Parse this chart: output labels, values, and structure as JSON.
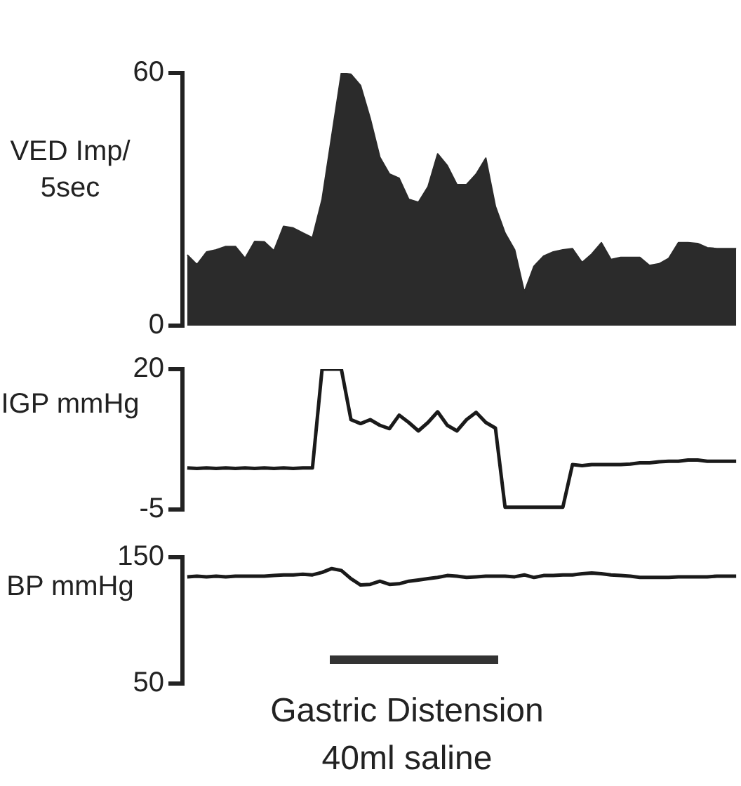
{
  "chart_data": [
    {
      "type": "area",
      "ylabel": "VED Imp/ 5sec",
      "tick_labels": "y",
      "categories": [
        null,
        null,
        null,
        null,
        null,
        null,
        null,
        null,
        null,
        null,
        null,
        null,
        null,
        null,
        null,
        null,
        null,
        null,
        null,
        null,
        null,
        null,
        null,
        null,
        null,
        null,
        null,
        null,
        null,
        null,
        null,
        null,
        null,
        null,
        null,
        null,
        null,
        null,
        null,
        null,
        null,
        null,
        null,
        null,
        null,
        null,
        null,
        null,
        null,
        null,
        null,
        null,
        null,
        null,
        null,
        null,
        null,
        null
      ],
      "ylim": [
        0,
        60
      ],
      "yticks": [
        0,
        60
      ],
      "series": [
        {
          "color": "#2b2b2b",
          "values": [
            16.8,
            14.5,
            17.5,
            18,
            18.8,
            18.8,
            16,
            20,
            19.9,
            17.8,
            23.6,
            23.2,
            22,
            20.9,
            30,
            45,
            60,
            59.7,
            57,
            49.2,
            40,
            36,
            35,
            30,
            29.3,
            33,
            40.8,
            38,
            33.5,
            33.5,
            36,
            39.8,
            28.3,
            22,
            18,
            8,
            14.1,
            16.5,
            17.5,
            18,
            18.3,
            15,
            17,
            19.7,
            15.7,
            16.2,
            16.2,
            16.2,
            14.3,
            14.7,
            16,
            19.7,
            19.7,
            19.5,
            18.5,
            18.3,
            18.3,
            18.3
          ]
        }
      ]
    },
    {
      "type": "line",
      "ylabel": "IGP mmHg",
      "tick_labels": "y",
      "categories": [
        null,
        null,
        null,
        null,
        null,
        null,
        null,
        null,
        null,
        null,
        null,
        null,
        null,
        null,
        null,
        null,
        null,
        null,
        null,
        null,
        null,
        null,
        null,
        null,
        null,
        null,
        null,
        null,
        null,
        null,
        null,
        null,
        null,
        null,
        null,
        null,
        null,
        null,
        null,
        null,
        null,
        null,
        null,
        null,
        null,
        null,
        null,
        null,
        null,
        null,
        null,
        null,
        null,
        null,
        null,
        null,
        null,
        null
      ],
      "ylim": [
        -5,
        20
      ],
      "yticks": [
        -5,
        20
      ],
      "series": [
        {
          "color": "#1a1a1a",
          "values": [
            2.4,
            2.3,
            2.4,
            2.3,
            2.4,
            2.3,
            2.4,
            2.3,
            2.4,
            2.3,
            2.4,
            2.3,
            2.4,
            2.4,
            20,
            20,
            20,
            11,
            10.3,
            11,
            10,
            9.4,
            11.8,
            10.5,
            9,
            10.5,
            12.4,
            10,
            9,
            11,
            12.3,
            10.5,
            9.5,
            -4.6,
            -4.6,
            -4.6,
            -4.6,
            -4.6,
            -4.6,
            -4.6,
            3,
            2.8,
            3,
            3,
            3,
            3,
            3.1,
            3.3,
            3.3,
            3.5,
            3.6,
            3.6,
            3.8,
            3.8,
            3.6,
            3.6,
            3.6,
            3.6
          ]
        }
      ]
    },
    {
      "type": "line",
      "ylabel": "BP mmHg",
      "tick_labels": "y",
      "categories": [
        null,
        null,
        null,
        null,
        null,
        null,
        null,
        null,
        null,
        null,
        null,
        null,
        null,
        null,
        null,
        null,
        null,
        null,
        null,
        null,
        null,
        null,
        null,
        null,
        null,
        null,
        null,
        null,
        null,
        null,
        null,
        null,
        null,
        null,
        null,
        null,
        null,
        null,
        null,
        null,
        null,
        null,
        null,
        null,
        null,
        null,
        null,
        null,
        null,
        null,
        null,
        null,
        null,
        null,
        null,
        null,
        null,
        null
      ],
      "ylim": [
        50,
        150
      ],
      "yticks": [
        50,
        150
      ],
      "annotations": [
        "Gastric Distension 40ml saline"
      ],
      "series": [
        {
          "color": "#1a1a1a",
          "values": [
            134.5,
            135,
            134.5,
            135,
            134.5,
            135,
            135,
            135,
            135,
            135.5,
            136,
            136,
            136.5,
            136,
            138,
            141,
            139.5,
            133,
            128,
            128.5,
            131,
            128.5,
            129,
            131,
            132,
            133,
            134,
            135.5,
            135,
            134,
            134.5,
            135,
            135,
            135,
            134.5,
            136,
            134,
            135.5,
            135.5,
            136,
            136,
            137,
            137.5,
            137,
            136,
            135.5,
            135,
            134,
            134,
            134,
            134,
            134.5,
            134.5,
            134.5,
            134.5,
            135,
            135,
            135
          ]
        }
      ]
    }
  ]
}
